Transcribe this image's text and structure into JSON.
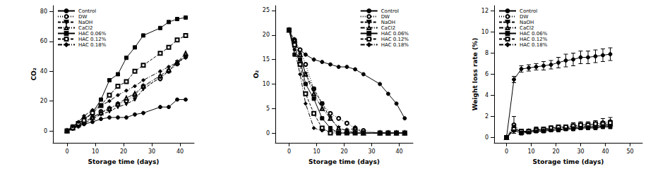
{
  "chart_data": [
    {
      "type": "line",
      "x_label": "Storage time (days)",
      "y_label": "CO₂",
      "xlim": [
        -5,
        45
      ],
      "xticks": [
        0,
        10,
        20,
        30,
        40
      ],
      "ylim": [
        -8,
        84
      ],
      "yticks": [
        0,
        20,
        40,
        60,
        80
      ],
      "grid": false,
      "legend": "upper left",
      "x": [
        0,
        2,
        4,
        6,
        9,
        12,
        15,
        18,
        21,
        24,
        27,
        33,
        36,
        39,
        42
      ],
      "series": [
        {
          "name": "Control",
          "color": "#000000",
          "marker": "circle",
          "line_style": "solid",
          "values": [
            0,
            1.5,
            3,
            4.5,
            6,
            8,
            9,
            9,
            9,
            11,
            12,
            16,
            16,
            21,
            21
          ]
        },
        {
          "name": "DW",
          "color": "#000000",
          "marker": "circle_open",
          "line_style": "dotted",
          "values": [
            0,
            2,
            4,
            6,
            9,
            13,
            15,
            18,
            20,
            24,
            30,
            35,
            40,
            45,
            50
          ]
        },
        {
          "name": "NaOH",
          "color": "#000000",
          "marker": "triangle_down",
          "line_style": "dashed",
          "values": [
            0,
            2,
            3,
            5,
            8,
            11,
            13,
            16,
            18,
            21,
            28,
            36,
            40,
            46,
            50
          ]
        },
        {
          "name": "CaCl2",
          "color": "#000000",
          "marker": "triangle_open",
          "line_style": "dashdot",
          "values": [
            0,
            2,
            4,
            6,
            9,
            12,
            15,
            18,
            22,
            25,
            30,
            37,
            41,
            46,
            52
          ]
        },
        {
          "name": "HAC 0.06%",
          "color": "#000000",
          "marker": "square",
          "line_style": "solid",
          "values": [
            0,
            3,
            5,
            8,
            12,
            21,
            34,
            38,
            49,
            56,
            64,
            69,
            73,
            75,
            76
          ]
        },
        {
          "name": "HAC 0.12%",
          "color": "#000000",
          "marker": "square_open",
          "line_style": "dashed",
          "values": [
            0,
            2,
            5,
            7,
            12,
            17,
            24,
            30,
            33,
            40,
            44,
            52,
            56,
            61,
            64
          ]
        },
        {
          "name": "HAC 0.18%",
          "color": "#000000",
          "marker": "diamond",
          "line_style": "dashdot",
          "values": [
            0,
            3,
            6,
            10,
            14,
            17,
            20,
            24,
            27,
            30,
            34,
            40,
            43,
            46,
            49
          ]
        }
      ]
    },
    {
      "type": "line",
      "x_label": "Storage time (days)",
      "y_label": "O₂",
      "xlim": [
        -5,
        45
      ],
      "xticks": [
        0,
        10,
        20,
        30,
        40
      ],
      "ylim": [
        -2,
        26
      ],
      "yticks": [
        0,
        5,
        10,
        15,
        20,
        25
      ],
      "grid": false,
      "legend": "upper right",
      "x": [
        0,
        2,
        4,
        6,
        9,
        12,
        15,
        18,
        21,
        24,
        27,
        33,
        36,
        39,
        42
      ],
      "series": [
        {
          "name": "Control",
          "color": "#000000",
          "marker": "circle",
          "line_style": "solid",
          "values": [
            21,
            18,
            17,
            16,
            15,
            14.5,
            14,
            13.5,
            13.5,
            13,
            12,
            10,
            8,
            6,
            3
          ]
        },
        {
          "name": "DW",
          "color": "#000000",
          "marker": "circle_open",
          "line_style": "dotted",
          "values": [
            21,
            19,
            17,
            14,
            9,
            6,
            4,
            3,
            2,
            1,
            0.5,
            0,
            0,
            0,
            0
          ]
        },
        {
          "name": "NaOH",
          "color": "#000000",
          "marker": "triangle_down",
          "line_style": "dashed",
          "values": [
            21,
            18,
            16,
            12,
            9,
            6,
            3,
            1,
            0.5,
            0,
            0,
            0,
            0,
            0,
            0
          ]
        },
        {
          "name": "CaCl2",
          "color": "#000000",
          "marker": "triangle_open",
          "line_style": "dashdot",
          "values": [
            21,
            19,
            16,
            12,
            8,
            5,
            3,
            1,
            0.5,
            1,
            0,
            0,
            0,
            0,
            0
          ]
        },
        {
          "name": "HAC 0.06%",
          "color": "#000000",
          "marker": "square",
          "line_style": "solid",
          "values": [
            21,
            16,
            15,
            10,
            7,
            3,
            1,
            0,
            0,
            0,
            0,
            0,
            0,
            0,
            0
          ]
        },
        {
          "name": "HAC 0.12%",
          "color": "#000000",
          "marker": "square_open",
          "line_style": "dashed",
          "values": [
            21,
            18,
            14,
            8,
            4,
            1,
            0,
            0,
            0,
            0,
            0,
            0,
            0,
            0,
            0
          ]
        },
        {
          "name": "HAC 0.18%",
          "color": "#000000",
          "marker": "diamond",
          "line_style": "dashdot",
          "values": [
            21,
            17,
            12,
            6,
            1,
            0.5,
            0.5,
            0,
            0,
            0,
            0,
            0,
            0,
            0,
            0
          ]
        }
      ]
    },
    {
      "type": "line",
      "x_label": "Storage time (days)",
      "y_label": "Weight loss rate (%)",
      "xlim": [
        -5,
        55
      ],
      "xticks": [
        0,
        10,
        20,
        30,
        40,
        50
      ],
      "ylim": [
        -0.5,
        12.5
      ],
      "yticks": [
        0,
        2,
        4,
        6,
        8,
        10,
        12
      ],
      "grid": false,
      "legend": "upper left",
      "x": [
        0,
        3,
        6,
        9,
        12,
        15,
        18,
        21,
        24,
        27,
        30,
        33,
        36,
        39,
        42
      ],
      "series": [
        {
          "name": "Control",
          "color": "#000000",
          "marker": "circle",
          "line_style": "solid",
          "values": [
            0,
            5.5,
            6.5,
            6.6,
            6.7,
            6.8,
            6.9,
            7.1,
            7.3,
            7.4,
            7.6,
            7.6,
            7.7,
            7.8,
            7.9
          ],
          "errors": [
            0,
            0.3,
            0.3,
            0.3,
            0.3,
            0.4,
            0.4,
            0.5,
            0.6,
            0.6,
            0.6,
            0.6,
            0.6,
            0.6,
            0.6
          ]
        },
        {
          "name": "DW",
          "color": "#000000",
          "marker": "circle_open",
          "line_style": "dotted",
          "values": [
            0,
            1.2,
            0.6,
            0.6,
            0.8,
            0.8,
            0.9,
            1,
            1,
            1.1,
            1.2,
            1.2,
            1.3,
            1.4,
            1.5
          ],
          "errors": [
            0,
            0.8,
            0.2,
            0.2,
            0.2,
            0.2,
            0.2,
            0.2,
            0.2,
            0.3,
            0.3,
            0.3,
            0.3,
            0.4,
            0.4
          ]
        },
        {
          "name": "NaOH",
          "color": "#000000",
          "marker": "triangle_down",
          "line_style": "dashed",
          "values": [
            0,
            1,
            0.5,
            0.6,
            0.7,
            0.8,
            0.8,
            0.9,
            0.9,
            1,
            1,
            1.1,
            1.1,
            1.2,
            1.2
          ]
        },
        {
          "name": "CaCl2",
          "color": "#000000",
          "marker": "triangle_open",
          "line_style": "dashdot",
          "values": [
            0,
            0.9,
            0.5,
            0.6,
            0.7,
            0.7,
            0.8,
            0.9,
            0.9,
            1,
            1,
            1.1,
            1.1,
            1.2,
            1.3
          ]
        },
        {
          "name": "HAC 0.06%",
          "color": "#000000",
          "marker": "square",
          "line_style": "solid",
          "values": [
            0,
            0.7,
            0.4,
            0.5,
            0.6,
            0.6,
            0.7,
            0.7,
            0.8,
            0.8,
            0.9,
            0.9,
            0.9,
            1,
            1
          ]
        },
        {
          "name": "HAC 0.12%",
          "color": "#000000",
          "marker": "square_open",
          "line_style": "dashed",
          "values": [
            0,
            0.8,
            0.6,
            0.6,
            0.7,
            0.8,
            0.9,
            1,
            1,
            1.1,
            1.2,
            1.2,
            1.3,
            1.3,
            1.4
          ]
        },
        {
          "name": "HAC 0.18%",
          "color": "#000000",
          "marker": "diamond",
          "line_style": "dashdot",
          "values": [
            0,
            0.6,
            0.5,
            0.5,
            0.6,
            0.7,
            0.7,
            0.8,
            0.8,
            0.9,
            0.9,
            1,
            1,
            1.1,
            1.1
          ]
        }
      ]
    }
  ]
}
